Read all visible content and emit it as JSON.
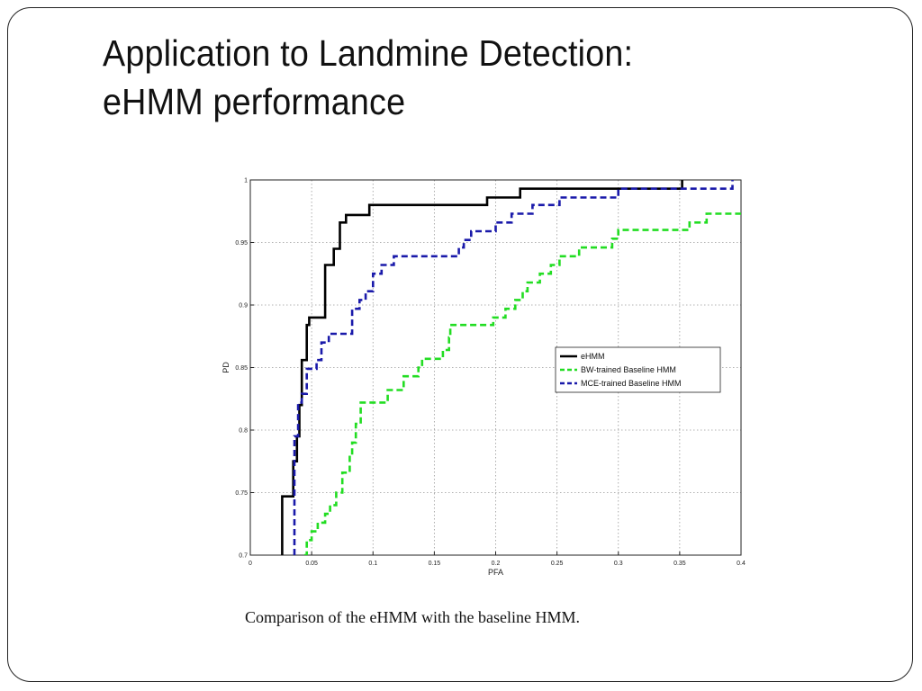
{
  "slide": {
    "title_line1": "Application to Landmine Detection:",
    "title_line2": "eHMM performance",
    "caption": "Comparison of the eHMM with the baseline HMM."
  },
  "chart_data": {
    "type": "line",
    "title": "",
    "xlabel": "PFA",
    "ylabel": "PD",
    "xlim": [
      0,
      0.4
    ],
    "ylim": [
      0.7,
      1
    ],
    "xticks": [
      0,
      0.05,
      0.1,
      0.15,
      0.2,
      0.25,
      0.3,
      0.35,
      0.4
    ],
    "xtick_labels": [
      "0",
      "0.05",
      "0.1",
      "0.15",
      "0.2",
      "0.25",
      "0.3",
      "0.35",
      "0.4"
    ],
    "yticks": [
      0.7,
      0.75,
      0.8,
      0.85,
      0.9,
      0.95,
      1
    ],
    "ytick_labels": [
      "0.7",
      "0.75",
      "0.8",
      "0.85",
      "0.9",
      "0.95",
      "1"
    ],
    "grid": true,
    "legend_position": "center-right",
    "series": [
      {
        "name": "eHMM",
        "color": "#000000",
        "dashed": false,
        "x": [
          0.026,
          0.026,
          0.028,
          0.028,
          0.035,
          0.035,
          0.038,
          0.038,
          0.04,
          0.04,
          0.042,
          0.042,
          0.046,
          0.046,
          0.048,
          0.048,
          0.061,
          0.061,
          0.064,
          0.064,
          0.068,
          0.068,
          0.073,
          0.073,
          0.078,
          0.078,
          0.082,
          0.082,
          0.097,
          0.097,
          0.193,
          0.193,
          0.22,
          0.22,
          0.35,
          0.35,
          0.352,
          0.352
        ],
        "y": [
          0.7,
          0.747,
          0.747,
          0.747,
          0.747,
          0.775,
          0.775,
          0.795,
          0.795,
          0.82,
          0.82,
          0.856,
          0.856,
          0.884,
          0.884,
          0.89,
          0.89,
          0.932,
          0.932,
          0.932,
          0.932,
          0.945,
          0.945,
          0.966,
          0.966,
          0.972,
          0.972,
          0.972,
          0.972,
          0.98,
          0.98,
          0.986,
          0.986,
          0.993,
          0.993,
          0.993,
          0.993,
          1.0
        ]
      },
      {
        "name": "BW-trained Baseline HMM",
        "color": "#22dd22",
        "dashed": true,
        "x": [
          0.044,
          0.044,
          0.046,
          0.046,
          0.05,
          0.05,
          0.055,
          0.055,
          0.061,
          0.061,
          0.065,
          0.065,
          0.07,
          0.07,
          0.075,
          0.075,
          0.078,
          0.078,
          0.081,
          0.081,
          0.083,
          0.083,
          0.086,
          0.086,
          0.09,
          0.09,
          0.112,
          0.112,
          0.125,
          0.125,
          0.137,
          0.137,
          0.14,
          0.14,
          0.15,
          0.15,
          0.157,
          0.157,
          0.162,
          0.162,
          0.163,
          0.163,
          0.173,
          0.173,
          0.175,
          0.175,
          0.18,
          0.18,
          0.185,
          0.185,
          0.198,
          0.198,
          0.208,
          0.208,
          0.216,
          0.216,
          0.222,
          0.222,
          0.226,
          0.226,
          0.232,
          0.232,
          0.236,
          0.236,
          0.245,
          0.245,
          0.252,
          0.252,
          0.258,
          0.258,
          0.26,
          0.26,
          0.262,
          0.262,
          0.268,
          0.268,
          0.295,
          0.295,
          0.3,
          0.3,
          0.302,
          0.302,
          0.358,
          0.358,
          0.365,
          0.365,
          0.372,
          0.372,
          0.385,
          0.385,
          0.4
        ],
        "y": [
          0.7,
          0.7,
          0.7,
          0.712,
          0.712,
          0.719,
          0.719,
          0.726,
          0.726,
          0.733,
          0.733,
          0.74,
          0.74,
          0.75,
          0.75,
          0.766,
          0.766,
          0.766,
          0.766,
          0.78,
          0.78,
          0.79,
          0.79,
          0.805,
          0.805,
          0.822,
          0.822,
          0.832,
          0.832,
          0.843,
          0.843,
          0.85,
          0.85,
          0.857,
          0.857,
          0.857,
          0.857,
          0.864,
          0.864,
          0.874,
          0.874,
          0.884,
          0.884,
          0.884,
          0.884,
          0.884,
          0.884,
          0.884,
          0.884,
          0.884,
          0.884,
          0.89,
          0.89,
          0.897,
          0.897,
          0.904,
          0.904,
          0.911,
          0.911,
          0.918,
          0.918,
          0.918,
          0.918,
          0.925,
          0.925,
          0.932,
          0.932,
          0.939,
          0.939,
          0.939,
          0.939,
          0.939,
          0.939,
          0.939,
          0.939,
          0.946,
          0.946,
          0.953,
          0.953,
          0.96,
          0.96,
          0.96,
          0.96,
          0.966,
          0.966,
          0.966,
          0.966,
          0.973,
          0.973,
          0.973,
          0.973
        ]
      },
      {
        "name": "MCE-trained Baseline HMM",
        "color": "#1a1aaa",
        "dashed": true,
        "x": [
          0.036,
          0.036,
          0.039,
          0.039,
          0.042,
          0.042,
          0.046,
          0.046,
          0.048,
          0.048,
          0.054,
          0.054,
          0.058,
          0.058,
          0.064,
          0.064,
          0.083,
          0.083,
          0.089,
          0.089,
          0.094,
          0.094,
          0.1,
          0.1,
          0.107,
          0.107,
          0.113,
          0.113,
          0.117,
          0.117,
          0.126,
          0.126,
          0.17,
          0.17,
          0.174,
          0.174,
          0.18,
          0.18,
          0.2,
          0.2,
          0.213,
          0.213,
          0.23,
          0.23,
          0.252,
          0.252,
          0.3,
          0.3,
          0.39,
          0.39,
          0.393,
          0.393
        ],
        "y": [
          0.7,
          0.795,
          0.795,
          0.822,
          0.822,
          0.829,
          0.829,
          0.849,
          0.849,
          0.849,
          0.849,
          0.856,
          0.856,
          0.87,
          0.87,
          0.877,
          0.877,
          0.897,
          0.897,
          0.904,
          0.904,
          0.911,
          0.911,
          0.925,
          0.925,
          0.932,
          0.932,
          0.932,
          0.932,
          0.939,
          0.939,
          0.939,
          0.939,
          0.946,
          0.946,
          0.952,
          0.952,
          0.959,
          0.959,
          0.966,
          0.966,
          0.973,
          0.973,
          0.98,
          0.98,
          0.986,
          0.986,
          0.993,
          0.993,
          0.993,
          0.993,
          1.0
        ]
      }
    ]
  }
}
